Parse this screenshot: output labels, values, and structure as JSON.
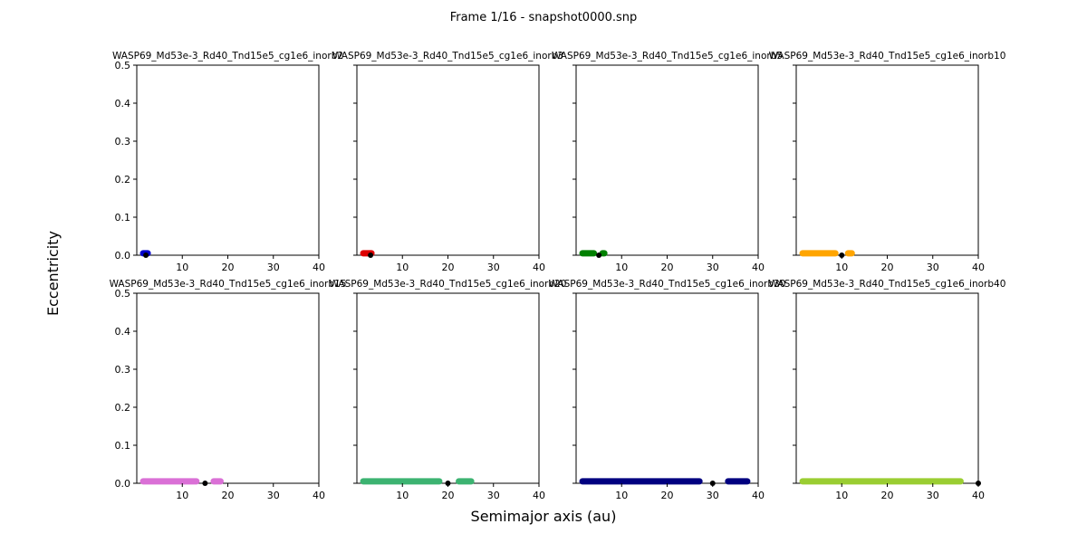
{
  "figure": {
    "suptitle": "Frame 1/16 - snapshot0000.snp",
    "xlabel": "Semimajor axis (au)",
    "ylabel": "Eccentricity"
  },
  "chart_data": [
    {
      "type": "scatter",
      "title": "WASP69_Md53e-3_Rd40_Tnd15e5_cg1e6_inorb2",
      "xlim": [
        0,
        40
      ],
      "ylim": [
        0,
        0.5
      ],
      "xticks": [
        "10",
        "20",
        "30",
        "40"
      ],
      "yticks": [
        "0.0",
        "0.1",
        "0.2",
        "0.3",
        "0.4",
        "0.5"
      ],
      "disk_color": "#0000cd",
      "disk_segments": [
        [
          1,
          2.8
        ]
      ],
      "disk_e": 0.005,
      "planet_a": 2,
      "planet_e": 0
    },
    {
      "type": "scatter",
      "title": "WASP69_Md53e-3_Rd40_Tnd15e5_cg1e6_inorb3",
      "xlim": [
        0,
        40
      ],
      "ylim": [
        0,
        0.5
      ],
      "xticks": [
        "10",
        "20",
        "30",
        "40"
      ],
      "yticks": [
        "0.0",
        "0.1",
        "0.2",
        "0.3",
        "0.4",
        "0.5"
      ],
      "disk_color": "#dd0000",
      "disk_segments": [
        [
          1,
          3.6
        ]
      ],
      "disk_e": 0.005,
      "planet_a": 3,
      "planet_e": 0
    },
    {
      "type": "scatter",
      "title": "WASP69_Md53e-3_Rd40_Tnd15e5_cg1e6_inorb5",
      "xlim": [
        0,
        40
      ],
      "ylim": [
        0,
        0.5
      ],
      "xticks": [
        "10",
        "20",
        "30",
        "40"
      ],
      "yticks": [
        "0.0",
        "0.1",
        "0.2",
        "0.3",
        "0.4",
        "0.5"
      ],
      "disk_color": "#008000",
      "disk_segments": [
        [
          1,
          4.3
        ],
        [
          5.4,
          6.6
        ]
      ],
      "disk_e": 0.005,
      "planet_a": 5,
      "planet_e": 0
    },
    {
      "type": "scatter",
      "title": "WASP69_Md53e-3_Rd40_Tnd15e5_cg1e6_inorb10",
      "xlim": [
        0,
        40
      ],
      "ylim": [
        0,
        0.5
      ],
      "xticks": [
        "10",
        "20",
        "30",
        "40"
      ],
      "yticks": [
        "0.0",
        "0.1",
        "0.2",
        "0.3",
        "0.4",
        "0.5"
      ],
      "disk_color": "#ffa500",
      "disk_segments": [
        [
          1,
          9
        ],
        [
          11,
          12.6
        ]
      ],
      "disk_e": 0.005,
      "planet_a": 10,
      "planet_e": 0
    },
    {
      "type": "scatter",
      "title": "WASP69_Md53e-3_Rd40_Tnd15e5_cg1e6_inorb15",
      "xlim": [
        0,
        40
      ],
      "ylim": [
        0,
        0.5
      ],
      "xticks": [
        "10",
        "20",
        "30",
        "40"
      ],
      "yticks": [
        "0.0",
        "0.1",
        "0.2",
        "0.3",
        "0.4",
        "0.5"
      ],
      "disk_color": "#da70d6",
      "disk_segments": [
        [
          1,
          13.5
        ],
        [
          16.5,
          18.8
        ]
      ],
      "disk_e": 0.005,
      "planet_a": 15,
      "planet_e": 0
    },
    {
      "type": "scatter",
      "title": "WASP69_Md53e-3_Rd40_Tnd15e5_cg1e6_inorb20",
      "xlim": [
        0,
        40
      ],
      "ylim": [
        0,
        0.5
      ],
      "xticks": [
        "10",
        "20",
        "30",
        "40"
      ],
      "yticks": [
        "0.0",
        "0.1",
        "0.2",
        "0.3",
        "0.4",
        "0.5"
      ],
      "disk_color": "#3cb371",
      "disk_segments": [
        [
          1,
          18.5
        ],
        [
          22,
          25.5
        ]
      ],
      "disk_e": 0.005,
      "planet_a": 20,
      "planet_e": 0
    },
    {
      "type": "scatter",
      "title": "WASP69_Md53e-3_Rd40_Tnd15e5_cg1e6_inorb30",
      "xlim": [
        0,
        40
      ],
      "ylim": [
        0,
        0.5
      ],
      "xticks": [
        "10",
        "20",
        "30",
        "40"
      ],
      "yticks": [
        "0.0",
        "0.1",
        "0.2",
        "0.3",
        "0.4",
        "0.5"
      ],
      "disk_color": "#000080",
      "disk_segments": [
        [
          1,
          27.5
        ],
        [
          33,
          38
        ]
      ],
      "disk_e": 0.005,
      "planet_a": 30,
      "planet_e": 0
    },
    {
      "type": "scatter",
      "title": "WASP69_Md53e-3_Rd40_Tnd15e5_cg1e6_inorb40",
      "xlim": [
        0,
        40
      ],
      "ylim": [
        0,
        0.5
      ],
      "xticks": [
        "10",
        "20",
        "30",
        "40"
      ],
      "yticks": [
        "0.0",
        "0.1",
        "0.2",
        "0.3",
        "0.4",
        "0.5"
      ],
      "disk_color": "#9acd32",
      "disk_segments": [
        [
          1,
          36.5
        ]
      ],
      "disk_e": 0.005,
      "planet_a": 40,
      "planet_e": 0
    }
  ]
}
